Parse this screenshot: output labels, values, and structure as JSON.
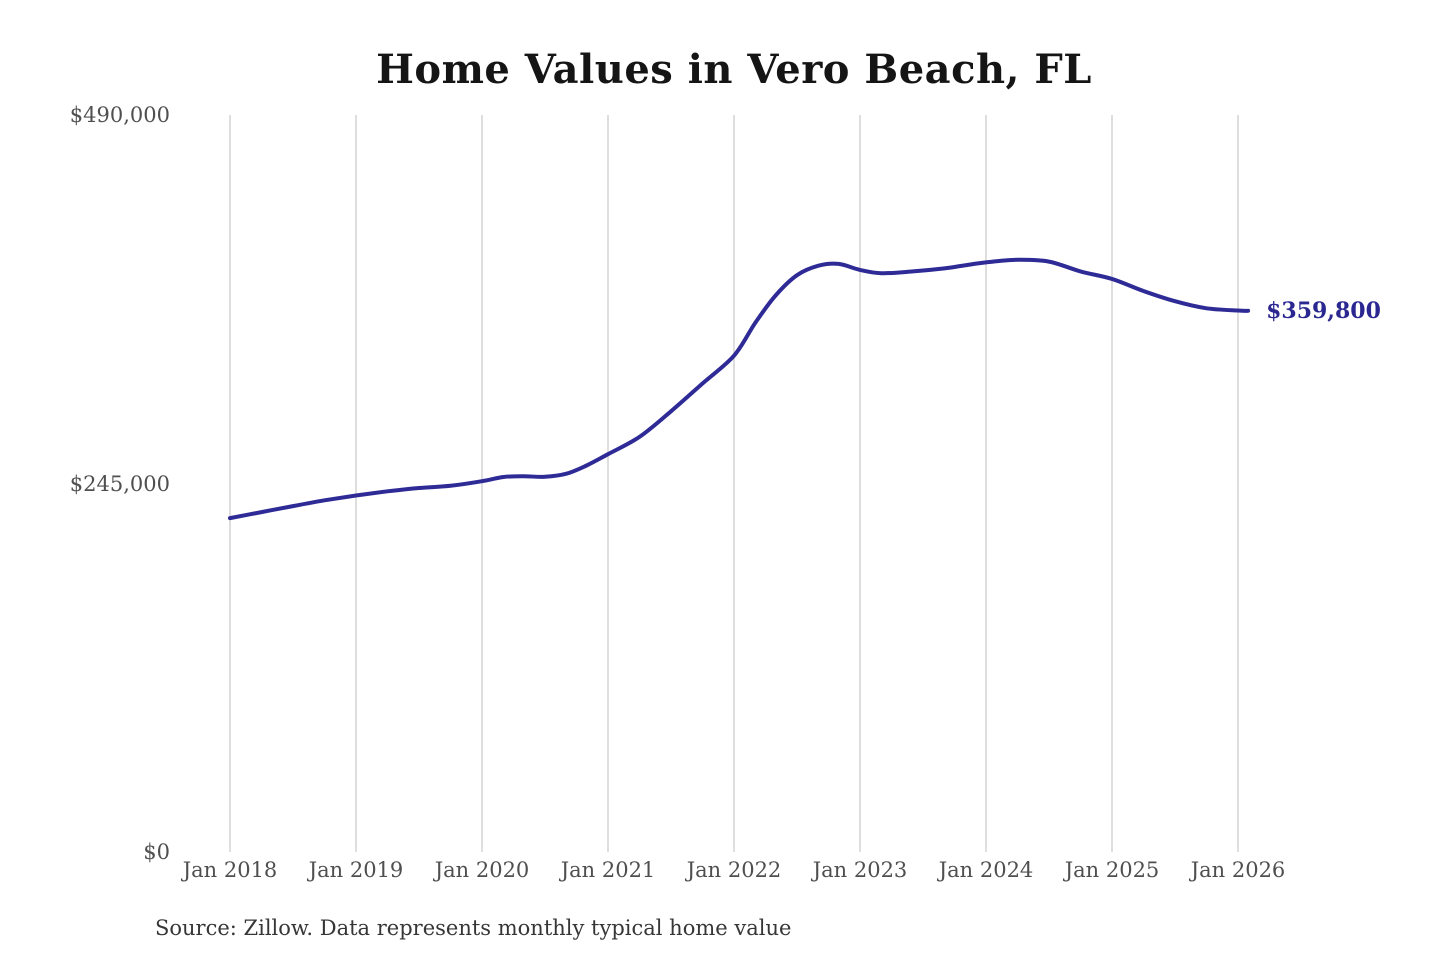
{
  "header": {
    "title": "Home Values in Vero Beach, FL"
  },
  "footer": {
    "source_note": "Source: Zillow. Data represents monthly typical home value"
  },
  "chart_data": {
    "type": "line",
    "title": "Home Values in Vero Beach, FL",
    "series_name": "Monthly typical home value",
    "xlabel": "",
    "ylabel": "",
    "grid": "vertical-only",
    "legend": "none",
    "ylim": [
      0,
      490000
    ],
    "xlim": [
      2018.0,
      2026.17
    ],
    "y_tick_values": [
      0,
      245000,
      490000
    ],
    "y_tick_labels": [
      "$0",
      "$245,000",
      "$490,000"
    ],
    "x_tick_years": [
      2018,
      2019,
      2020,
      2021,
      2022,
      2023,
      2024,
      2025,
      2026
    ],
    "x_tick_labels": [
      "Jan 2018",
      "Jan 2019",
      "Jan 2020",
      "Jan 2021",
      "Jan 2022",
      "Jan 2023",
      "Jan 2024",
      "Jan 2025",
      "Jan 2026"
    ],
    "colors": {
      "line": "#2f2b96",
      "end_label": "#2b2791",
      "gridline": "#cccccc",
      "tick_text": "#4f4f4f"
    },
    "end_label": {
      "text": "$359,800",
      "value": 359800
    },
    "points": [
      [
        2018.0,
        222000
      ],
      [
        2018.25,
        226000
      ],
      [
        2018.5,
        230000
      ],
      [
        2018.75,
        233800
      ],
      [
        2019.0,
        237000
      ],
      [
        2019.25,
        239800
      ],
      [
        2019.5,
        242000
      ],
      [
        2019.75,
        243500
      ],
      [
        2020.0,
        246500
      ],
      [
        2020.17,
        249300
      ],
      [
        2020.33,
        249800
      ],
      [
        2020.5,
        249500
      ],
      [
        2020.67,
        251500
      ],
      [
        2020.83,
        257000
      ],
      [
        2021.0,
        264500
      ],
      [
        2021.25,
        276000
      ],
      [
        2021.5,
        293000
      ],
      [
        2021.75,
        311500
      ],
      [
        2022.0,
        330000
      ],
      [
        2022.17,
        352000
      ],
      [
        2022.33,
        370000
      ],
      [
        2022.5,
        383500
      ],
      [
        2022.67,
        389800
      ],
      [
        2022.83,
        391000
      ],
      [
        2023.0,
        387000
      ],
      [
        2023.17,
        384800
      ],
      [
        2023.42,
        386000
      ],
      [
        2023.67,
        388000
      ],
      [
        2023.83,
        390000
      ],
      [
        2024.0,
        392000
      ],
      [
        2024.25,
        393700
      ],
      [
        2024.5,
        392500
      ],
      [
        2024.75,
        386000
      ],
      [
        2025.0,
        381000
      ],
      [
        2025.25,
        373000
      ],
      [
        2025.5,
        366200
      ],
      [
        2025.75,
        361500
      ],
      [
        2026.0,
        360000
      ],
      [
        2026.08,
        359800
      ]
    ]
  }
}
